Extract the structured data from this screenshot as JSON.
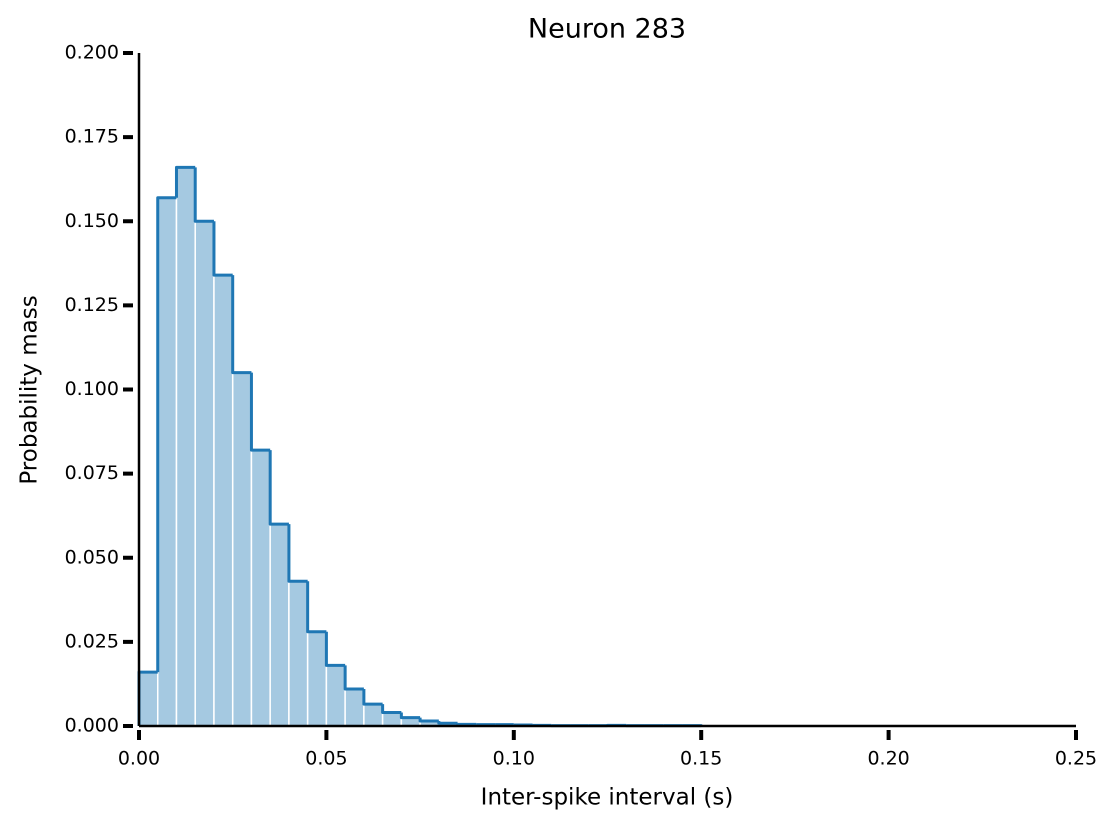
{
  "chart_data": {
    "type": "histogram",
    "title": "Neuron 283",
    "x_label": "Inter-spike interval (s)",
    "y_label": "Probability mass",
    "color": "#1f77b4",
    "bins": [
      0,
      0.005,
      0.01,
      0.015,
      0.02,
      0.025,
      0.03,
      0.035,
      0.04,
      0.045,
      0.05,
      0.055,
      0.06,
      0.065,
      0.07,
      0.075,
      0.08,
      0.085,
      0.09,
      0.095,
      0.1,
      0.105,
      0.11,
      0.115,
      0.12,
      0.125,
      0.13,
      0.135,
      0.14,
      0.145,
      0.15
    ],
    "values": [
      0.016,
      0.157,
      0.166,
      0.15,
      0.134,
      0.105,
      0.082,
      0.06,
      0.043,
      0.028,
      0.018,
      0.011,
      0.0065,
      0.004,
      0.0025,
      0.0015,
      0.0008,
      0.0005,
      0.0004,
      0.0004,
      0.0003,
      0.0002,
      0.0001,
      0.0001,
      0.0001,
      0.0002,
      0.0001,
      0.0001,
      0.0001,
      0.0001
    ],
    "xlim": [
      0,
      0.25
    ],
    "xticks": [
      {
        "value": 0,
        "label": "0.00"
      },
      0.05,
      {
        "value": 0.1,
        "label": "0.10"
      },
      0.15,
      {
        "value": 0.2,
        "label": "0.20"
      },
      0.25
    ],
    "ylim": [
      0,
      0.2
    ],
    "yticks": [
      {
        "value": 0,
        "label": "0.000"
      },
      0.025,
      {
        "value": 0.05,
        "label": "0.050"
      },
      0.075,
      {
        "value": 0.1,
        "label": "0.100"
      },
      0.125,
      {
        "value": 0.15,
        "label": "0.150"
      },
      0.175,
      {
        "value": 0.2,
        "label": "0.200"
      }
    ],
    "grid": false
  }
}
